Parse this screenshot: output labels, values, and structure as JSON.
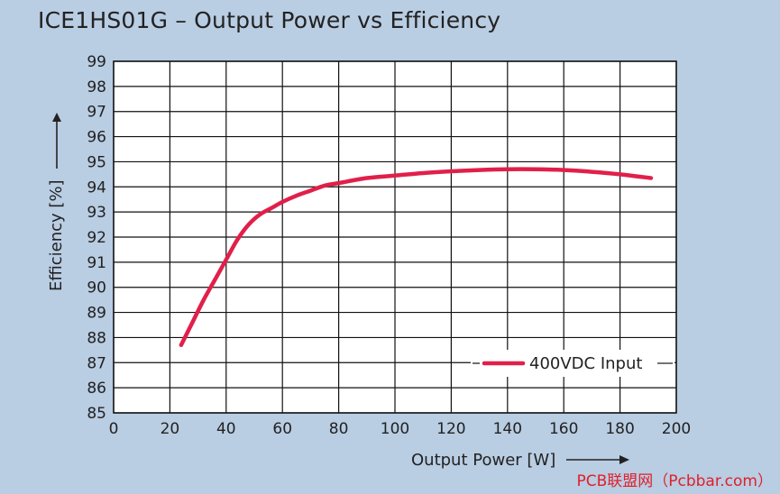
{
  "chart_data": {
    "type": "line",
    "title": "ICE1HS01G – Output Power vs Efficiency",
    "xlabel": "Output Power [W]",
    "ylabel": "Efficiency [%]",
    "xlim": [
      0,
      200
    ],
    "ylim": [
      85,
      99
    ],
    "xticks": [
      0,
      20,
      40,
      60,
      80,
      100,
      120,
      140,
      160,
      180,
      200
    ],
    "yticks": [
      85,
      86,
      87,
      88,
      89,
      90,
      91,
      92,
      93,
      94,
      95,
      96,
      97,
      98,
      99
    ],
    "grid": true,
    "legend_position": "bottom-right",
    "series": [
      {
        "name": "400VDC Input",
        "color": "#e0204a",
        "x": [
          24,
          28,
          32,
          36,
          40,
          44,
          48,
          52,
          56,
          60,
          65,
          70,
          75,
          80,
          90,
          100,
          110,
          120,
          130,
          140,
          150,
          160,
          170,
          180,
          191
        ],
        "y": [
          87.7,
          88.6,
          89.5,
          90.3,
          91.1,
          91.9,
          92.5,
          92.9,
          93.15,
          93.4,
          93.65,
          93.85,
          94.05,
          94.15,
          94.35,
          94.45,
          94.55,
          94.62,
          94.67,
          94.7,
          94.7,
          94.67,
          94.6,
          94.5,
          94.35
        ]
      }
    ]
  },
  "watermark": "PCB联盟网（Pcbbar.com）"
}
